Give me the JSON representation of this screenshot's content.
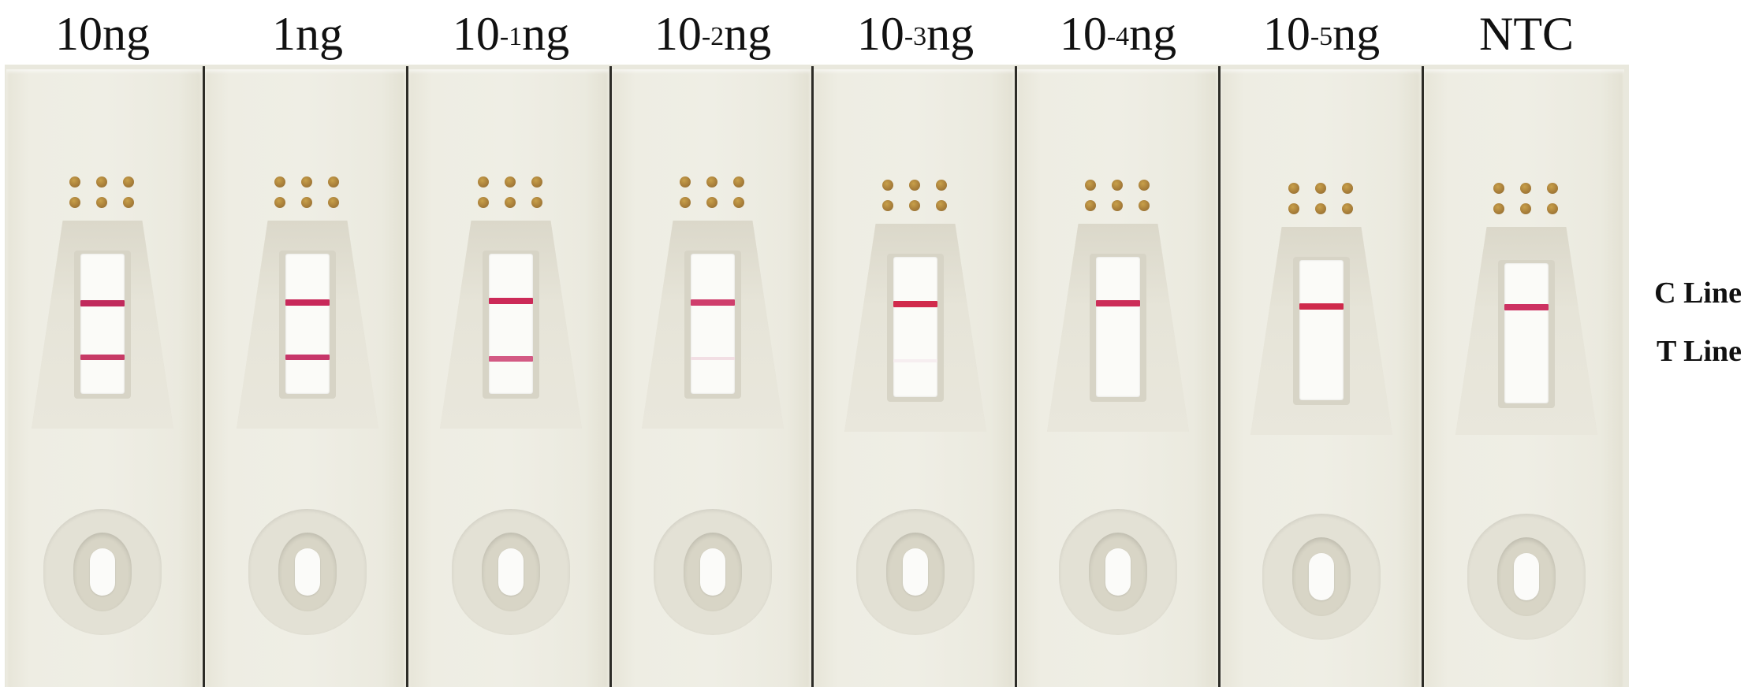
{
  "cassettes": [
    {
      "label_base": "10",
      "label_exp": "",
      "label_unit": "ng",
      "c_line": "#c02a5c",
      "t_line": "#c73a66"
    },
    {
      "label_base": "1",
      "label_exp": "",
      "label_unit": "ng",
      "c_line": "#c8285a",
      "t_line": "#c7366a"
    },
    {
      "label_base": "10",
      "label_exp": "-1",
      "label_unit": "ng",
      "c_line": "#cc2a58",
      "t_line": "#d35a84"
    },
    {
      "label_base": "10",
      "label_exp": "-2",
      "label_unit": "ng",
      "c_line": "#cf3e6c",
      "t_line": "#f2dfe4"
    },
    {
      "label_base": "10",
      "label_exp": "-3",
      "label_unit": "ng",
      "c_line": "#d12a4c",
      "t_line": "#f6eef0"
    },
    {
      "label_base": "10",
      "label_exp": "-4",
      "label_unit": "ng",
      "c_line": "#cc2d58",
      "t_line": ""
    },
    {
      "label_base": "10",
      "label_exp": "-5",
      "label_unit": "ng",
      "c_line": "#cf2a4c",
      "t_line": ""
    },
    {
      "label_base": "NTC",
      "label_exp": "",
      "label_unit": "",
      "c_line": "#cd3262",
      "t_line": ""
    }
  ],
  "line_labels": {
    "c_line": "C Line",
    "t_line": "T Line"
  }
}
